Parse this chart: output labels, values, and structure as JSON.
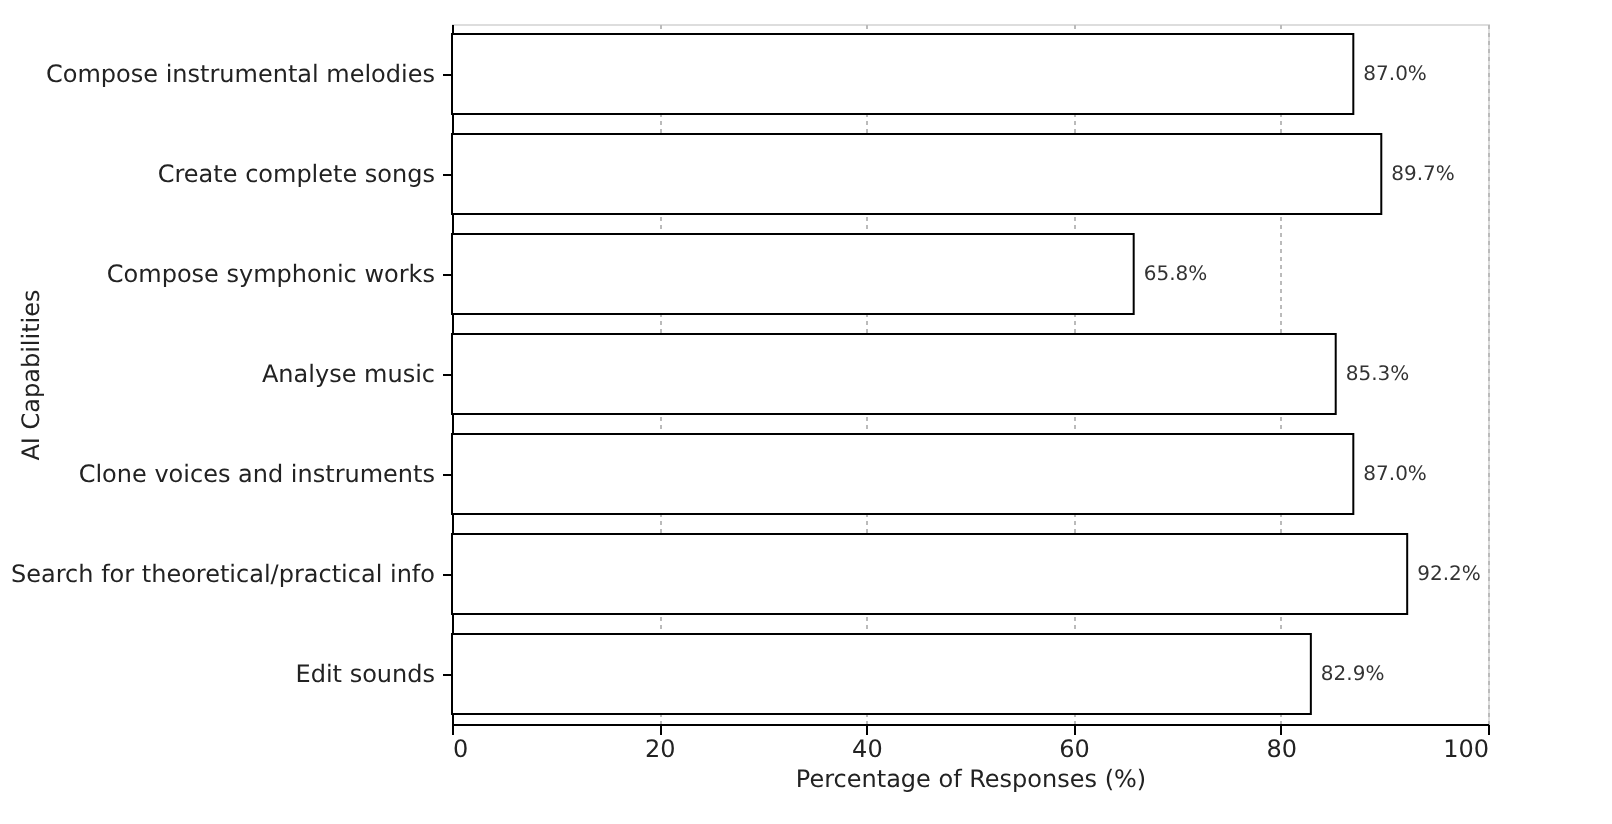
{
  "chart_data": {
    "type": "bar",
    "orientation": "horizontal",
    "categories": [
      "Compose instrumental melodies",
      "Create complete songs",
      "Compose symphonic works",
      "Analyse music",
      "Clone voices and instruments",
      "Search for theoretical/practical info",
      "Edit sounds"
    ],
    "values": [
      87.0,
      89.7,
      65.8,
      85.3,
      87.0,
      92.2,
      82.9
    ],
    "value_labels": [
      "87.0%",
      "89.7%",
      "65.8%",
      "85.3%",
      "87.0%",
      "92.2%",
      "82.9%"
    ],
    "color": "#ffffff",
    "xlabel": "Percentage of Responses (%)",
    "ylabel": "AI Capabilities",
    "xlim": [
      0,
      100
    ],
    "xticks": [
      0,
      20,
      40,
      60,
      80,
      100
    ],
    "grid": "x"
  }
}
